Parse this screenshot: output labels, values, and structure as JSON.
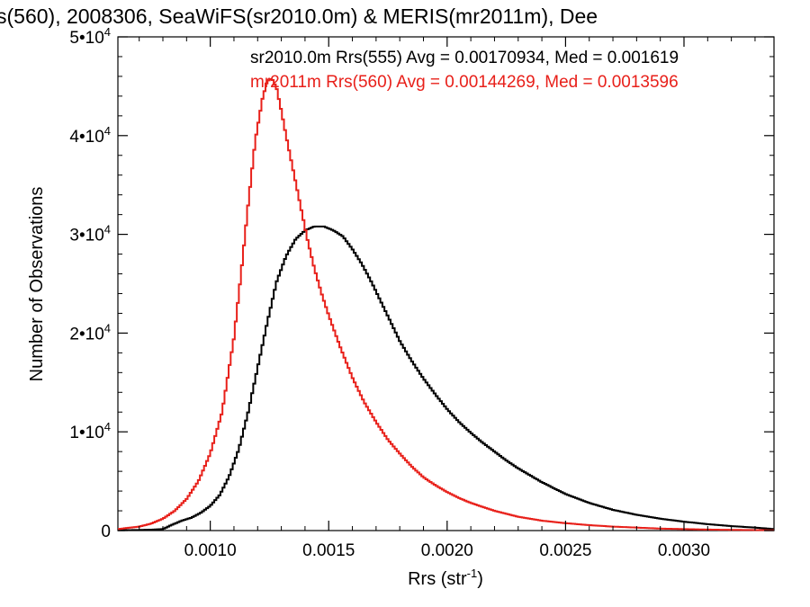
{
  "chart_data": {
    "type": "line",
    "title": "s(560), 2008306, SeaWiFS(sr2010.0m) & MERIS(mr2011m), Dee",
    "xlabel": "Rrs (str",
    "xlabel_sup": "-1",
    "xlabel_close": ")",
    "ylabel": "Number of Observations",
    "xlim": [
      0.00061,
      0.00338
    ],
    "ylim": [
      0,
      50000
    ],
    "x_ticks": [
      {
        "value": 0.001,
        "label": "0.0010"
      },
      {
        "value": 0.0015,
        "label": "0.0015"
      },
      {
        "value": 0.002,
        "label": "0.0020"
      },
      {
        "value": 0.0025,
        "label": "0.0025"
      },
      {
        "value": 0.003,
        "label": "0.0030"
      }
    ],
    "y_ticks": [
      {
        "value": 0,
        "base": "0",
        "exp": ""
      },
      {
        "value": 10000,
        "base": "1•10",
        "exp": "4"
      },
      {
        "value": 20000,
        "base": "2•10",
        "exp": "4"
      },
      {
        "value": 30000,
        "base": "3•10",
        "exp": "4"
      },
      {
        "value": 40000,
        "base": "4•10",
        "exp": "4"
      },
      {
        "value": 50000,
        "base": "5•10",
        "exp": "4"
      }
    ],
    "grid": false,
    "legend_position": "top-right",
    "series": [
      {
        "name": "sr2010.0m Rrs(555) Avg = 0.00170934, Med = 0.001619",
        "color": "#000000",
        "x": [
          0.00061,
          0.0007,
          0.00075,
          0.0008,
          0.00084,
          0.00088,
          0.00092,
          0.00096,
          0.001,
          0.00104,
          0.00108,
          0.00112,
          0.00116,
          0.0012,
          0.00124,
          0.00128,
          0.00132,
          0.00136,
          0.0014,
          0.00144,
          0.00148,
          0.00152,
          0.00156,
          0.0016,
          0.00164,
          0.00168,
          0.00172,
          0.00176,
          0.0018,
          0.00185,
          0.0019,
          0.00195,
          0.002,
          0.00205,
          0.0021,
          0.00215,
          0.0022,
          0.00225,
          0.0023,
          0.00235,
          0.0024,
          0.00245,
          0.0025,
          0.0026,
          0.0027,
          0.0028,
          0.0029,
          0.003,
          0.0031,
          0.0032,
          0.0033,
          0.00338
        ],
        "y": [
          30,
          60,
          90,
          150,
          600,
          1000,
          1300,
          1800,
          2500,
          3600,
          5500,
          8200,
          12000,
          16500,
          21000,
          25200,
          27800,
          29500,
          30400,
          30800,
          30800,
          30400,
          29800,
          28500,
          27000,
          25200,
          23200,
          21200,
          19200,
          17200,
          15400,
          13800,
          12300,
          11000,
          9900,
          8900,
          8000,
          7100,
          6300,
          5600,
          4900,
          4300,
          3700,
          2800,
          2100,
          1600,
          1200,
          900,
          650,
          450,
          300,
          150
        ]
      },
      {
        "name": "mr2011m Rrs(560) Avg = 0.00144269, Med = 0.0013596",
        "color": "#e8201a",
        "x": [
          0.00061,
          0.0007,
          0.00075,
          0.0008,
          0.00085,
          0.0009,
          0.00095,
          0.001,
          0.00105,
          0.0011,
          0.00113,
          0.00116,
          0.00119,
          0.00122,
          0.00124,
          0.00126,
          0.00128,
          0.0013,
          0.00132,
          0.00135,
          0.00138,
          0.00141,
          0.00144,
          0.00147,
          0.0015,
          0.00155,
          0.0016,
          0.00165,
          0.0017,
          0.00175,
          0.0018,
          0.00185,
          0.0019,
          0.00195,
          0.002,
          0.00205,
          0.0021,
          0.00215,
          0.0022,
          0.00225,
          0.0023,
          0.0024,
          0.0025,
          0.0026,
          0.0027,
          0.0028,
          0.0029,
          0.003,
          0.0031,
          0.0032,
          0.0033,
          0.00338
        ],
        "y": [
          150,
          400,
          700,
          1200,
          2000,
          3200,
          5000,
          7800,
          12000,
          19500,
          26000,
          33000,
          39500,
          43700,
          45500,
          45800,
          44800,
          42500,
          40000,
          36500,
          33000,
          29500,
          26500,
          24000,
          21800,
          18500,
          15500,
          13000,
          11000,
          9200,
          7800,
          6500,
          5400,
          4600,
          3900,
          3300,
          2800,
          2400,
          2000,
          1700,
          1400,
          1000,
          750,
          550,
          400,
          300,
          200,
          150,
          100,
          70,
          50,
          30
        ]
      }
    ]
  }
}
